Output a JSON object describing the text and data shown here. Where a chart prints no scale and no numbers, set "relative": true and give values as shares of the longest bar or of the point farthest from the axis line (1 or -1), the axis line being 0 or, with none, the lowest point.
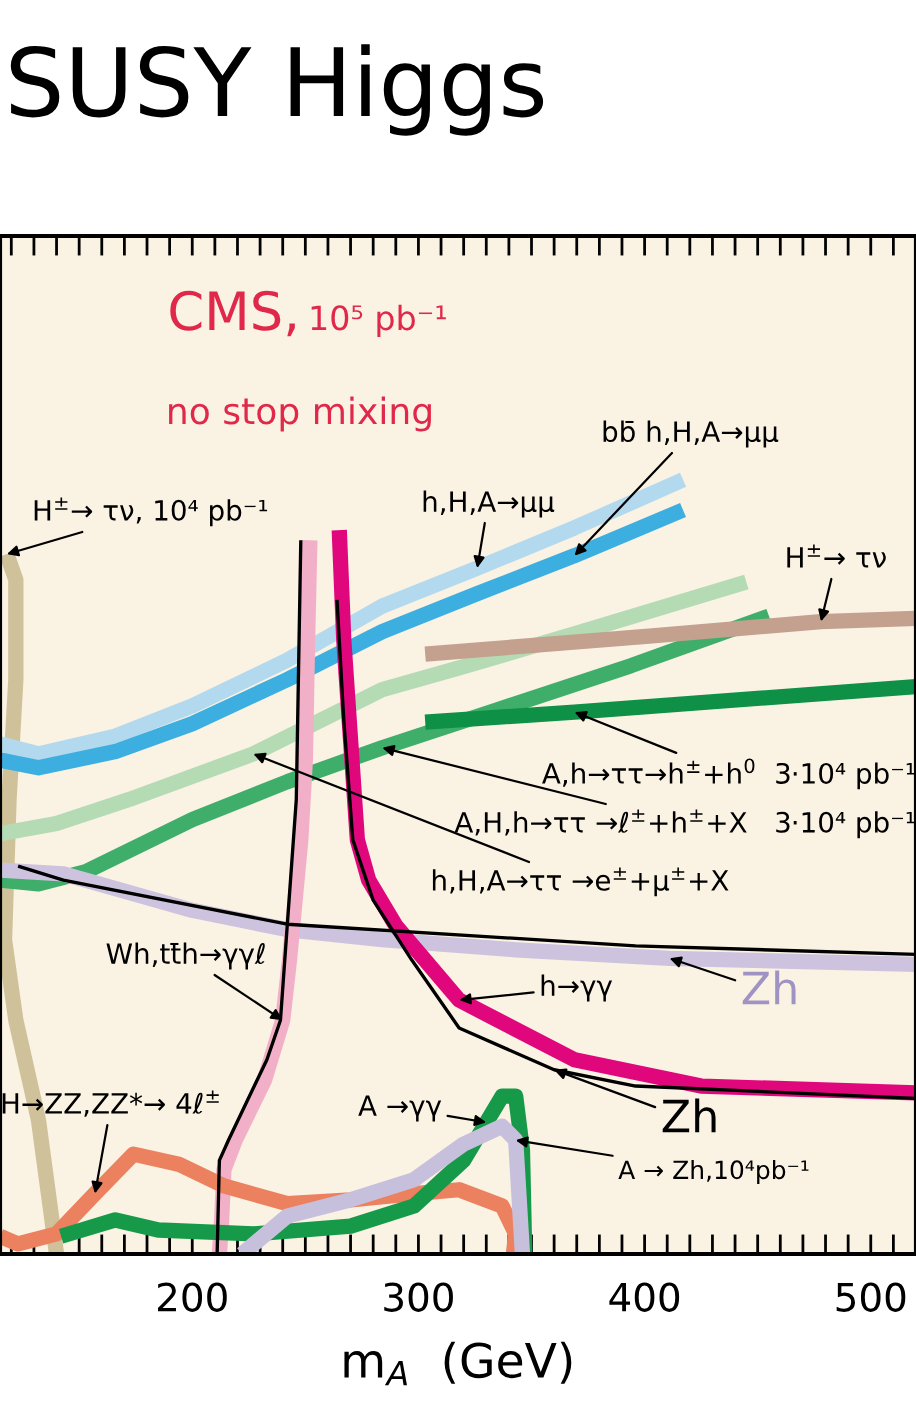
{
  "chart_data": {
    "type": "line",
    "title": "SUSY Higgs",
    "xlabel": "m$_{A}$  (GeV)",
    "relative": true,
    "xlim": [
      115,
      520
    ],
    "xticks": [
      {
        "value": 120,
        "label": null
      },
      {
        "value": 130,
        "label": null
      },
      {
        "value": 140,
        "label": null
      },
      {
        "value": 150,
        "label": null
      },
      {
        "value": 160,
        "label": null
      },
      {
        "value": 170,
        "label": null
      },
      {
        "value": 180,
        "label": null
      },
      {
        "value": 190,
        "label": null
      },
      200,
      {
        "value": 210,
        "label": null
      },
      {
        "value": 220,
        "label": null
      },
      {
        "value": 230,
        "label": null
      },
      {
        "value": 240,
        "label": null
      },
      {
        "value": 250,
        "label": null
      },
      {
        "value": 260,
        "label": null
      },
      {
        "value": 270,
        "label": null
      },
      {
        "value": 280,
        "label": null
      },
      {
        "value": 290,
        "label": null
      },
      300,
      {
        "value": 310,
        "label": null
      },
      {
        "value": 320,
        "label": null
      },
      {
        "value": 330,
        "label": null
      },
      {
        "value": 340,
        "label": null
      },
      {
        "value": 350,
        "label": null
      },
      {
        "value": 360,
        "label": null
      },
      {
        "value": 370,
        "label": null
      },
      {
        "value": 380,
        "label": null
      },
      {
        "value": 390,
        "label": null
      },
      400,
      {
        "value": 410,
        "label": null
      },
      {
        "value": 420,
        "label": null
      },
      {
        "value": 430,
        "label": null
      },
      {
        "value": 440,
        "label": null
      },
      {
        "value": 450,
        "label": null
      },
      {
        "value": 460,
        "label": null
      },
      {
        "value": 470,
        "label": null
      },
      {
        "value": 480,
        "label": null
      },
      {
        "value": 490,
        "label": null
      },
      500,
      {
        "value": 510,
        "label": null
      }
    ],
    "grid": false,
    "legend": false,
    "marker": "none",
    "line_style": "solid",
    "annotations": [
      "CMS,",
      "10⁵ pb⁻¹",
      "no stop mixing",
      {
        "text": "H$^{±}$→ τν, 10⁴ pb⁻¹",
        "x": 118,
        "y": 0.904
      },
      {
        "text": "h,H,A→μμ",
        "x": 326,
        "y": 0.886
      },
      {
        "text": "bb̄ h,H,A→μμ",
        "x": 369,
        "y": 0.902
      },
      {
        "text": "h,H,A→ττ →e$^{±}$+μ$^{±}$+X",
        "x": 227,
        "y": 0.646
      },
      {
        "text": "A,H,h→ττ →ℓ$^{±}$+h$^{±}$+X   3·10⁴ pb⁻¹",
        "x": 284,
        "y": 0.654
      },
      {
        "text": "A,h→ττ→h$^{±}$+h$^{0}$  3·10⁴ pb⁻¹",
        "x": 369,
        "y": 0.7
      },
      {
        "text": "H$^{±}$→ τν",
        "x": 478,
        "y": 0.817
      },
      {
        "text": "Zh",
        "x": 411,
        "y": 0.382
      },
      {
        "text": "h→γγ",
        "x": 318,
        "y": 0.328
      },
      {
        "text": "Zh",
        "x": 360,
        "y": 0.238
      },
      {
        "text": "Wh,tt̄h→γγℓ",
        "x": 240,
        "y": 0.302
      },
      {
        "text": "H→ZZ,ZZ*→ 4ℓ$^{±}$",
        "x": 157,
        "y": 0.078
      },
      {
        "text": "A →γγ",
        "x": 330,
        "y": 0.17
      },
      {
        "text": "A → Zh,10⁴pb⁻¹",
        "x": 343,
        "y": 0.147
      }
    ],
    "series": [
      {
        "color": "#cfc29a",
        "x": [
          118,
          122,
          122,
          119,
          117,
          122,
          132,
          140
        ],
        "values": [
          0.904,
          0.871,
          0.742,
          0.587,
          0.406,
          0.302,
          0.173,
          0
        ]
      },
      {
        "color": "#b3d9ef",
        "x": [
          115,
          132,
          166,
          200,
          242,
          284,
          326,
          369,
          417
        ],
        "values": [
          0.659,
          0.646,
          0.669,
          0.708,
          0.767,
          0.837,
          0.886,
          0.938,
          1
        ]
      },
      {
        "color": "#3daee0",
        "x": [
          115,
          132,
          166,
          200,
          242,
          284,
          326,
          369,
          417
        ],
        "values": [
          0.638,
          0.628,
          0.649,
          0.685,
          0.742,
          0.804,
          0.853,
          0.902,
          0.961
        ]
      },
      {
        "color": "#b5dbb5",
        "x": [
          115,
          140,
          172,
          227,
          284,
          318,
          369,
          445
        ],
        "values": [
          0.543,
          0.556,
          0.587,
          0.646,
          0.729,
          0.757,
          0.801,
          0.868
        ]
      },
      {
        "color": "#3fae6a",
        "x": [
          115,
          132,
          153,
          200,
          242,
          284,
          335,
          394,
          455
        ],
        "values": [
          0.483,
          0.478,
          0.494,
          0.561,
          0.61,
          0.654,
          0.703,
          0.76,
          0.824
        ]
      },
      {
        "color": "#0e9146",
        "x": [
          303,
          369,
          520
        ],
        "values": [
          0.687,
          0.7,
          0.733
        ]
      },
      {
        "color": "#c4a08f",
        "x": [
          303,
          402,
          478,
          520
        ],
        "values": [
          0.775,
          0.798,
          0.817,
          0.821
        ]
      },
      {
        "color": "#cdc3df",
        "x": [
          115,
          143,
          200,
          242,
          284,
          343,
          411,
          520
        ],
        "values": [
          0.496,
          0.491,
          0.444,
          0.419,
          0.406,
          0.393,
          0.382,
          0.374
        ]
      },
      {
        "color": "#000000",
        "x": [
          123,
          143,
          242,
          396,
          520
        ],
        "values": [
          0.501,
          0.483,
          0.426,
          0.398,
          0.387
        ]
      },
      {
        "color": "#e0077d",
        "x": [
          265,
          267,
          270,
          273,
          278,
          290,
          318,
          369,
          425,
          520
        ],
        "values": [
          0.935,
          0.793,
          0.664,
          0.535,
          0.483,
          0.424,
          0.328,
          0.251,
          0.217,
          0.208
        ]
      },
      {
        "color": "#000000",
        "x": [
          264,
          267,
          271,
          280,
          297,
          318,
          360,
          396,
          520
        ],
        "values": [
          0.845,
          0.69,
          0.535,
          0.457,
          0.38,
          0.292,
          0.238,
          0.217,
          0.201
        ]
      },
      {
        "color": "#f2b0c8",
        "x": [
          252,
          251,
          250,
          248,
          243,
          240,
          232,
          219,
          214,
          213,
          212
        ],
        "values": [
          0.922,
          0.793,
          0.638,
          0.535,
          0.38,
          0.302,
          0.225,
          0.147,
          0.109,
          0.044,
          0
        ]
      },
      {
        "color": "#000000",
        "x": [
          248,
          246,
          239,
          233,
          216,
          212,
          211
        ],
        "values": [
          0.922,
          0.587,
          0.302,
          0.251,
          0.147,
          0.121,
          0
        ]
      },
      {
        "color": "#ec8160",
        "x": [
          115,
          123,
          140,
          157,
          174,
          194,
          214,
          242,
          270,
          298,
          318,
          337,
          343,
          342
        ],
        "values": [
          0.023,
          0.013,
          0.026,
          0.078,
          0.129,
          0.116,
          0.088,
          0.065,
          0.07,
          0.078,
          0.083,
          0.062,
          0.026,
          0
        ]
      },
      {
        "color": "#169a4a",
        "x": [
          142,
          166,
          185,
          227,
          270,
          298,
          320,
          337,
          343,
          346,
          347
        ],
        "values": [
          0.023,
          0.044,
          0.031,
          0.026,
          0.036,
          0.062,
          0.121,
          0.204,
          0.204,
          0.134,
          0
        ]
      },
      {
        "color": "#c7c0dc",
        "x": [
          222,
          242,
          270,
          298,
          320,
          337,
          343,
          346
        ],
        "values": [
          0,
          0.049,
          0.07,
          0.096,
          0.142,
          0.165,
          0.147,
          0
        ]
      }
    ]
  }
}
